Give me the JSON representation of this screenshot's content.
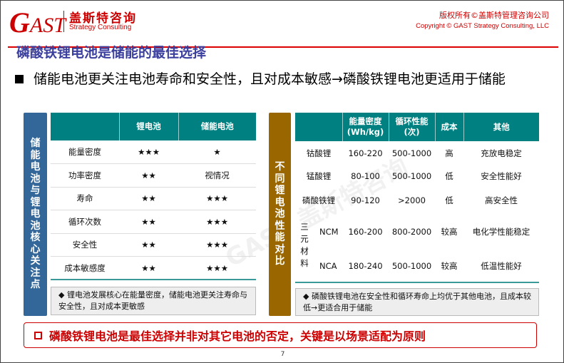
{
  "header": {
    "logo_text": "GAST",
    "brand_cn": "盖斯特咨询",
    "brand_en": "Strategy Consulting",
    "copyright_cn": "版权所有©盖斯特管理咨询公司",
    "copyright_en": "Copyright © GAST Strategy Consulting, LLC"
  },
  "watermark": "GAST 盖斯特咨询",
  "title": "磷酸铁锂电池是储能的最佳选择",
  "bullet": "储能电池更关注电池寿命和安全性，且对成本敏感→磷酸铁锂电池更适用于储能",
  "left": {
    "side_label": "储能电池与锂电池核心关注点",
    "headers": [
      "",
      "锂电池",
      "储能电池"
    ],
    "rows": [
      [
        "能量密度",
        "★★★",
        "★"
      ],
      [
        "功率密度",
        "★★",
        "视情况"
      ],
      [
        "寿命",
        "★★",
        "★★★"
      ],
      [
        "循环次数",
        "★★",
        "★★★"
      ],
      [
        "安全性",
        "★★",
        "★★★"
      ],
      [
        "成本敏感度",
        "★★",
        "★★★"
      ]
    ],
    "note": "◆ 锂电池发展核心在能量密度，储能电池更关注寿命与安全性，且对成本更敏感"
  },
  "right": {
    "side_label": "不同锂电池性能对比",
    "headers": [
      "",
      "能量密度\n(Wh/kg)",
      "循环性能\n(次)",
      "成本",
      "其他"
    ],
    "rows": [
      [
        "钴酸锂",
        "160-220",
        "500-1000",
        "高",
        "充放电稳定"
      ],
      [
        "锰酸锂",
        "80-100",
        "500-1000",
        "低",
        "安全性能好"
      ],
      [
        "磷酸铁锂",
        "90-120",
        ">2000",
        "低",
        "高安全性"
      ]
    ],
    "ternary_label": "三元材料",
    "ternary_rows": [
      [
        "NCM",
        "160-200",
        "800-2000",
        "较高",
        "电化学性能稳定"
      ],
      [
        "NCA",
        "180-240",
        "500-1000",
        "较高",
        "低温性能好"
      ]
    ],
    "note": "◆ 磷酸铁锂电池在安全性和循环寿命上均优于其他电池，且成本较低→更适合用于储能"
  },
  "conclusion": "磷酸铁锂电池是最佳选择并非对其它电池的否定，关键是以场景适配为原则",
  "page_number": "7",
  "colors": {
    "accent_red": "#cc0000",
    "title_blue": "#3b3f9e",
    "teal": "#008080",
    "left_bar": "#336699",
    "right_bar": "#996600"
  }
}
